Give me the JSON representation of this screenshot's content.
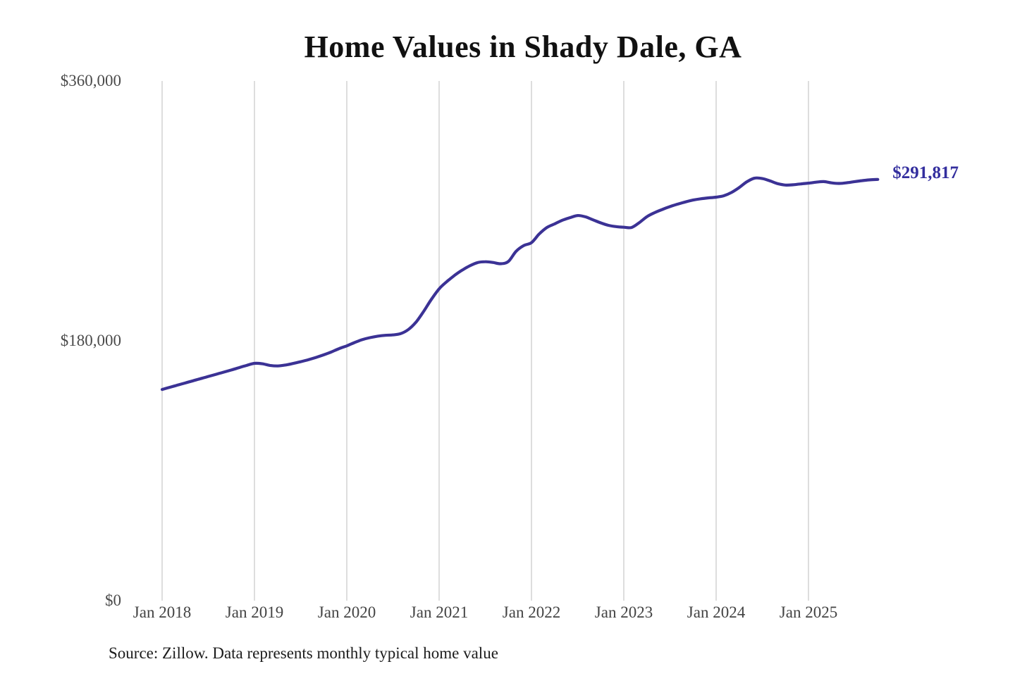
{
  "accent_color": "#3b3295",
  "chart_data": {
    "type": "line",
    "title": "Home Values in Shady Dale, GA",
    "series_name": "Monthly typical home value",
    "unit": "USD",
    "ylim": [
      0,
      360000
    ],
    "grid": "vertical-only",
    "legend": "none",
    "line_color": "#3b3295",
    "grid_color": "#cbcbcb",
    "y_ticks": [
      {
        "label": "$0",
        "value": 0
      },
      {
        "label": "$180,000",
        "value": 180000
      },
      {
        "label": "$360,000",
        "value": 360000
      }
    ],
    "x_tick_labels": [
      "Jan 2018",
      "Jan 2019",
      "Jan 2020",
      "Jan 2021",
      "Jan 2022",
      "Jan 2023",
      "Jan 2024",
      "Jan 2025"
    ],
    "end_label": {
      "text": "$291,817",
      "value": 291817,
      "color": "#332e9e"
    },
    "source_note": "Source: Zillow. Data represents monthly typical home value",
    "x": [
      "2018-01",
      "2018-02",
      "2018-03",
      "2018-04",
      "2018-05",
      "2018-06",
      "2018-07",
      "2018-08",
      "2018-09",
      "2018-10",
      "2018-11",
      "2018-12",
      "2019-01",
      "2019-02",
      "2019-03",
      "2019-04",
      "2019-05",
      "2019-06",
      "2019-07",
      "2019-08",
      "2019-09",
      "2019-10",
      "2019-11",
      "2019-12",
      "2020-01",
      "2020-02",
      "2020-03",
      "2020-04",
      "2020-05",
      "2020-06",
      "2020-07",
      "2020-08",
      "2020-09",
      "2020-10",
      "2020-11",
      "2020-12",
      "2021-01",
      "2021-02",
      "2021-03",
      "2021-04",
      "2021-05",
      "2021-06",
      "2021-07",
      "2021-08",
      "2021-09",
      "2021-10",
      "2021-11",
      "2021-12",
      "2022-01",
      "2022-02",
      "2022-03",
      "2022-04",
      "2022-05",
      "2022-06",
      "2022-07",
      "2022-08",
      "2022-09",
      "2022-10",
      "2022-11",
      "2022-12",
      "2023-01",
      "2023-02",
      "2023-03",
      "2023-04",
      "2023-05",
      "2023-06",
      "2023-07",
      "2023-08",
      "2023-09",
      "2023-10",
      "2023-11",
      "2023-12",
      "2024-01",
      "2024-02",
      "2024-03",
      "2024-04",
      "2024-05",
      "2024-06",
      "2024-07",
      "2024-08",
      "2024-09",
      "2024-10",
      "2024-11",
      "2024-12",
      "2025-01",
      "2025-02",
      "2025-03",
      "2025-04",
      "2025-05",
      "2025-06",
      "2025-07",
      "2025-08",
      "2025-09",
      "2025-10"
    ],
    "values": [
      146300,
      147800,
      149300,
      150800,
      152300,
      153800,
      155300,
      156800,
      158300,
      159800,
      161400,
      163000,
      164400,
      164100,
      163000,
      162600,
      163200,
      164300,
      165500,
      166900,
      168500,
      170300,
      172300,
      174600,
      176500,
      178800,
      180800,
      182200,
      183200,
      183800,
      184100,
      185000,
      187800,
      193000,
      200500,
      208800,
      216000,
      221000,
      225300,
      229000,
      232000,
      234200,
      234800,
      234300,
      233400,
      235000,
      242000,
      246000,
      248000,
      254000,
      258500,
      261000,
      263500,
      265300,
      266800,
      265900,
      263800,
      261700,
      260000,
      259100,
      258700,
      258500,
      261800,
      266000,
      268800,
      271000,
      273000,
      274700,
      276200,
      277500,
      278400,
      279000,
      279500,
      280500,
      282800,
      286200,
      290200,
      292700,
      292400,
      290800,
      288900,
      287900,
      288100,
      288700,
      289200,
      289900,
      290300,
      289400,
      289000,
      289500,
      290300,
      291000,
      291500,
      291817
    ]
  }
}
